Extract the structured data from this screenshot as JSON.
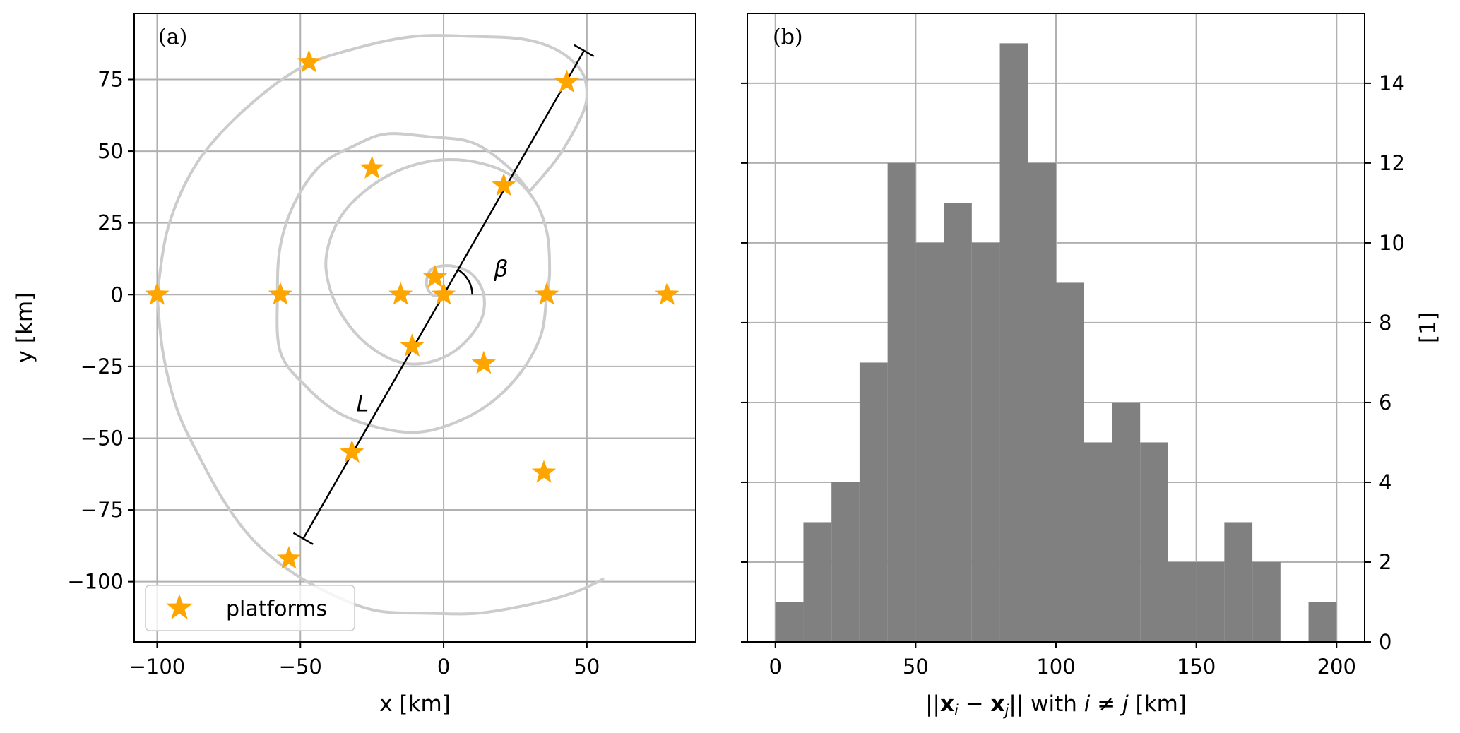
{
  "chart_data": [
    {
      "type": "scatter",
      "panel_label": "(a)",
      "xlabel": "x [km]",
      "ylabel": "y [km]",
      "xlim": [
        -108,
        88
      ],
      "ylim": [
        -121,
        98
      ],
      "xticks": [
        -100,
        -50,
        0,
        50
      ],
      "yticks": [
        -100,
        -75,
        -50,
        -25,
        0,
        25,
        50,
        75
      ],
      "xtick_labels": [
        "−100",
        "−50",
        "0",
        "50"
      ],
      "ytick_labels": [
        "−100",
        "−75",
        "−50",
        "−25",
        "0",
        "25",
        "50",
        "75"
      ],
      "grid": true,
      "spiral_color": "#cccccc",
      "spiral_path": [
        [
          0,
          0
        ],
        [
          -4,
          0
        ],
        [
          -6,
          4
        ],
        [
          -4,
          9
        ],
        [
          3,
          10
        ],
        [
          10,
          7
        ],
        [
          14,
          0
        ],
        [
          13,
          -9
        ],
        [
          6,
          -18
        ],
        [
          -3,
          -23
        ],
        [
          -13,
          -24
        ],
        [
          -23,
          -20
        ],
        [
          -32,
          -12
        ],
        [
          -39,
          0
        ],
        [
          -41,
          13
        ],
        [
          -36,
          27
        ],
        [
          -25,
          38
        ],
        [
          -11,
          45
        ],
        [
          5,
          47
        ],
        [
          21,
          43
        ],
        [
          31,
          34
        ],
        [
          36,
          22
        ],
        [
          37,
          8
        ],
        [
          36,
          0
        ],
        [
          34,
          -14
        ],
        [
          27,
          -27
        ],
        [
          16,
          -38
        ],
        [
          3,
          -45
        ],
        [
          -10,
          -48
        ],
        [
          -24,
          -46
        ],
        [
          -37,
          -41
        ],
        [
          -48,
          -32
        ],
        [
          -57,
          -20
        ],
        [
          -58,
          0
        ],
        [
          -57,
          17
        ],
        [
          -52,
          32
        ],
        [
          -43,
          45
        ],
        [
          -31,
          52
        ],
        [
          -20,
          56
        ],
        [
          -5,
          55
        ],
        [
          10,
          53
        ],
        [
          22,
          45
        ],
        [
          30,
          36
        ]
      ],
      "spiral_outer": [
        [
          -100,
          0
        ],
        [
          -98,
          -20
        ],
        [
          -93,
          -40
        ],
        [
          -85,
          -57
        ],
        [
          -76,
          -73
        ],
        [
          -66,
          -86
        ],
        [
          -54,
          -96
        ],
        [
          -40,
          -104
        ],
        [
          -24,
          -110
        ],
        [
          -6,
          -111
        ],
        [
          12,
          -111
        ],
        [
          30,
          -108
        ],
        [
          45,
          -104
        ],
        [
          56,
          -99
        ]
      ],
      "spiral_mid": [
        [
          30,
          36
        ],
        [
          40,
          48
        ],
        [
          48,
          62
        ],
        [
          50,
          70
        ],
        [
          48,
          78
        ],
        [
          40,
          85
        ],
        [
          28,
          89
        ],
        [
          10,
          90
        ],
        [
          -10,
          90
        ],
        [
          -30,
          86
        ],
        [
          -50,
          79
        ],
        [
          -70,
          64
        ],
        [
          -86,
          46
        ],
        [
          -96,
          24
        ],
        [
          -100,
          0
        ]
      ],
      "series": [
        {
          "name": "platforms",
          "marker": "star",
          "color": "#ffa500",
          "points": [
            [
              -47,
              81
            ],
            [
              43,
              74
            ],
            [
              -25,
              44
            ],
            [
              21,
              38
            ],
            [
              -3,
              6
            ],
            [
              -57,
              0
            ],
            [
              -100,
              0
            ],
            [
              -15,
              0
            ],
            [
              0,
              0
            ],
            [
              36,
              0
            ],
            [
              78,
              0
            ],
            [
              -11,
              -18
            ],
            [
              14,
              -24
            ],
            [
              -32,
              -55
            ],
            [
              35,
              -62
            ],
            [
              -54,
              -92
            ]
          ]
        }
      ],
      "baseline": {
        "x0": -49,
        "y0": -85,
        "x1": 49,
        "y1": 85,
        "color": "#000000"
      },
      "annotations": [
        {
          "text": "β",
          "x": 20,
          "y": 9
        },
        {
          "text": "L",
          "x": -28,
          "y": -38
        }
      ],
      "angle_arc": {
        "cx": 0,
        "cy": 0,
        "radius": 10
      },
      "legend": {
        "location": "lower-left",
        "entries": [
          "platforms"
        ]
      }
    },
    {
      "type": "bar",
      "panel_label": "(b)",
      "xlabel_parts": [
        "||",
        "x",
        "i",
        " − ",
        "x",
        "j",
        "|| with ",
        "i",
        " ≠ ",
        "j",
        "  [km]"
      ],
      "ylabel": "[1]",
      "xlim": [
        -10,
        210
      ],
      "ylim": [
        0,
        15.75
      ],
      "xticks": [
        0,
        50,
        100,
        150,
        200
      ],
      "yticks": [
        0,
        2,
        4,
        6,
        8,
        10,
        12,
        14
      ],
      "y_axis_side": "right",
      "grid": true,
      "bar_color": "#808080",
      "bin_width": 10,
      "bin_starts": [
        0,
        10,
        20,
        30,
        40,
        50,
        60,
        70,
        80,
        90,
        100,
        110,
        120,
        130,
        140,
        150,
        160,
        170,
        180,
        190
      ],
      "values": [
        1,
        3,
        4,
        7,
        12,
        10,
        11,
        10,
        15,
        12,
        9,
        5,
        6,
        5,
        2,
        2,
        3,
        2,
        0,
        1
      ]
    }
  ]
}
